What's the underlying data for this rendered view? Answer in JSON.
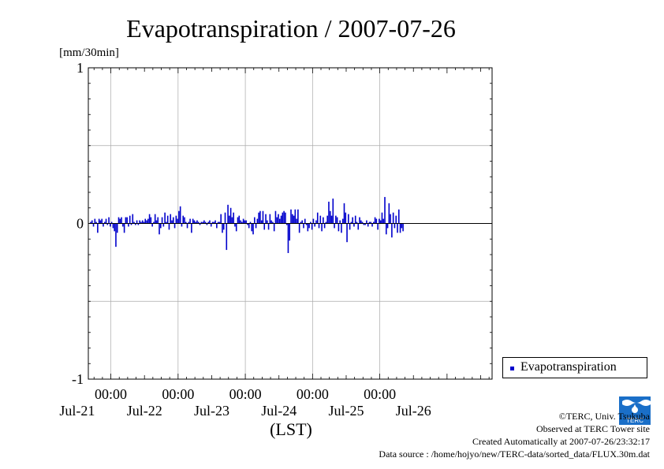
{
  "chart_data": {
    "type": "bar",
    "title": "Evapotranspiration / 2007-07-26",
    "ylabel": "[mm/30min]",
    "xlabel": "(LST)",
    "ylim": [
      -1,
      1
    ],
    "yticks": [
      "1",
      "0",
      "-1"
    ],
    "x_time_labels": [
      "00:00",
      "00:00",
      "00:00",
      "00:00",
      "00:00"
    ],
    "x_date_labels": [
      "Jul-21",
      "Jul-22",
      "Jul-23",
      "Jul-24",
      "Jul-25",
      "Jul-26"
    ],
    "x_range_days": [
      20.665,
      26.67
    ],
    "grid": true,
    "legend_position": "bottom-right",
    "series": [
      {
        "name": "Evapotranspiration",
        "color": "#0000cc",
        "x_start_day": 20.7,
        "x_step_days": 0.0208333,
        "values": [
          0.01,
          0.02,
          -0.02,
          0.03,
          0.01,
          -0.06,
          0.03,
          0.02,
          0.03,
          -0.02,
          0.01,
          0.03,
          -0.01,
          0.04,
          -0.02,
          0.01,
          -0.03,
          -0.05,
          -0.15,
          -0.06,
          0.04,
          0.03,
          0.04,
          -0.02,
          -0.06,
          0.04,
          0.04,
          -0.02,
          0.05,
          -0.01,
          0.06,
          0.01,
          -0.01,
          0.02,
          -0.01,
          0.02,
          0.01,
          0.02,
          0.01,
          0.03,
          0.02,
          0.03,
          0.06,
          0.04,
          -0.02,
          0.01,
          0.06,
          0.02,
          0.04,
          -0.07,
          -0.03,
          0.04,
          -0.02,
          0.07,
          0.01,
          0.05,
          -0.04,
          0.06,
          0.02,
          0.04,
          -0.03,
          0.05,
          0.03,
          0.08,
          0.11,
          -0.02,
          0.05,
          0.04,
          0.01,
          -0.03,
          0.01,
          0.03,
          -0.06,
          0.03,
          0.02,
          0.01,
          0.02,
          0.01,
          -0.01,
          0.01,
          0.01,
          0.02,
          0.01,
          -0.01,
          0.01,
          0.02,
          -0.02,
          0.01,
          0.01,
          0.02,
          -0.03,
          0.01,
          0.01,
          0.06,
          -0.06,
          -0.04,
          0.07,
          -0.17,
          0.12,
          0.05,
          0.1,
          0.04,
          0.07,
          -0.02,
          -0.05,
          0.04,
          0.05,
          0.02,
          0.01,
          0.03,
          0.02,
          0.02,
          -0.01,
          -0.03,
          0.01,
          -0.05,
          -0.07,
          0.04,
          -0.03,
          0.03,
          0.07,
          0.08,
          0.02,
          0.08,
          -0.04,
          0.06,
          0.02,
          -0.04,
          0.06,
          0.02,
          0.01,
          -0.05,
          0.08,
          0.04,
          0.06,
          0.03,
          0.05,
          0.07,
          0.08,
          0.07,
          -0.01,
          -0.19,
          -0.11,
          0.09,
          0.06,
          0.05,
          0.09,
          0.03,
          0.09,
          -0.06,
          0.01,
          0.02,
          -0.03,
          0.03,
          -0.01,
          -0.05,
          -0.03,
          0.01,
          -0.04,
          0.03,
          -0.02,
          0.02,
          0.07,
          -0.03,
          0.05,
          -0.05,
          0.04,
          -0.03,
          0.01,
          0.05,
          0.14,
          0.08,
          0.05,
          0.16,
          -0.03,
          0.05,
          0.04,
          -0.05,
          0.02,
          -0.06,
          0.03,
          0.13,
          0.07,
          -0.12,
          0.06,
          -0.04,
          0.01,
          0.04,
          -0.02,
          0.05,
          0.01,
          -0.04,
          0.04,
          0.02,
          0.01,
          -0.01,
          -0.01,
          0.02,
          -0.02,
          0.01,
          0.01,
          -0.02,
          0.01,
          0.04,
          0.03,
          -0.04,
          0.03,
          0.02,
          0.07,
          0.03,
          0.17,
          -0.07,
          -0.03,
          0.13,
          0.06,
          -0.09,
          0.07,
          -0.03,
          0.05,
          -0.06,
          0.09,
          -0.06,
          -0.03,
          -0.05
        ]
      }
    ]
  },
  "legend": {
    "label": "Evapotranspiration"
  },
  "credits": {
    "copyright": "©TERC, Univ. Tsukuba",
    "observed": "Observed at TERC Tower site",
    "created": "Created Automatically at 2007-07-26/23:32:17",
    "source": "Data source : /home/hojyo/new/TERC-data/sorted_data/FLUX.30m.dat"
  },
  "logo": {
    "text": "TERC",
    "color": "#1a6fc8"
  }
}
